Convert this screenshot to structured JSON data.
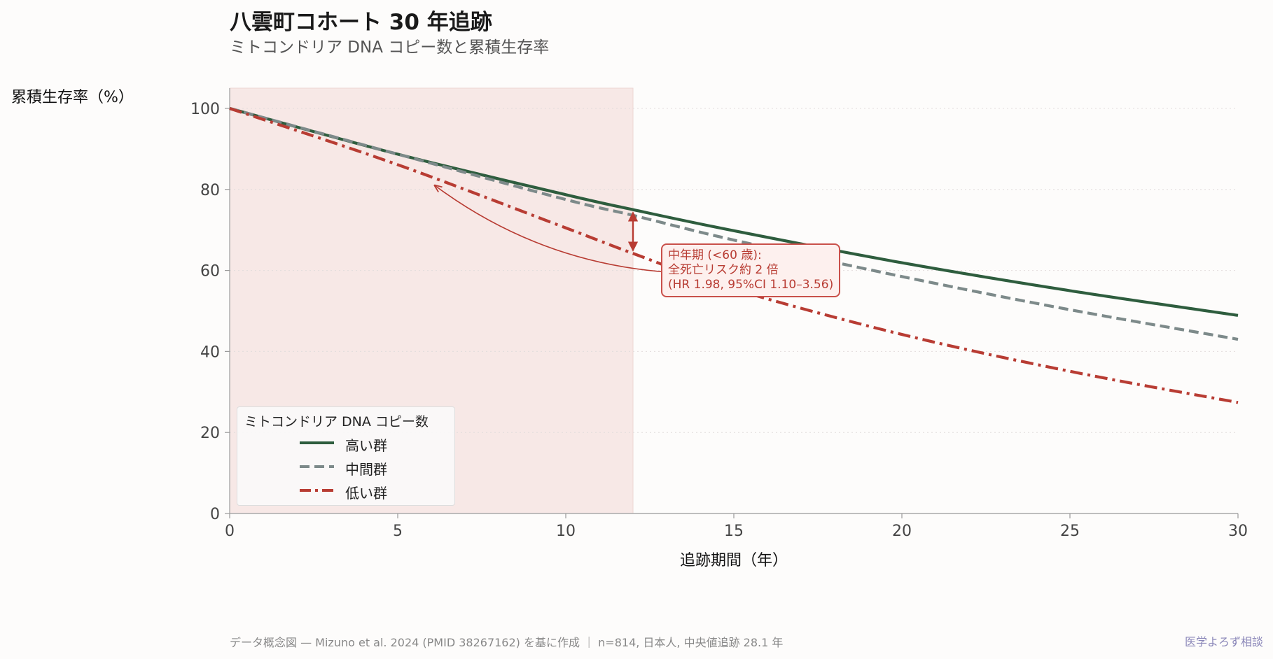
{
  "header": {
    "title": "八雲町コホート 30 年追跡",
    "subtitle": "ミトコンドリア DNA コピー数と累積生存率"
  },
  "footer": {
    "note": "データ概念図 — Mizuno et al. 2024 (PMID 38267162) を基に作成 ｜ n=814, 日本人, 中央値追跡 28.1 年",
    "brand": "医学よろず相談"
  },
  "annotation": {
    "line1": "中年期 (<60 歳):",
    "line2": "全死亡リスク約 2 倍",
    "line3": "(HR 1.98, 95%CI 1.10–3.56)"
  },
  "chart_data": {
    "type": "line",
    "xlabel": "追跡期間（年）",
    "ylabel": "累積生存率（%）",
    "xlim": [
      0,
      30
    ],
    "ylim": [
      0,
      105
    ],
    "xticks": [
      0,
      5,
      10,
      15,
      20,
      25,
      30
    ],
    "yticks": [
      0,
      20,
      40,
      60,
      80,
      100
    ],
    "grid": "horizontal-dotted",
    "shaded_region": {
      "x_from": 0,
      "x_to": 12,
      "color": "#f7e8e6"
    },
    "legend": {
      "title": "ミトコンドリア DNA コピー数",
      "placement": "lower-left"
    },
    "series": [
      {
        "name": "高い群",
        "color": "#2e5d3e",
        "style": "solid",
        "x": [
          0,
          5,
          10,
          12,
          15,
          20,
          25,
          30
        ],
        "y": [
          100,
          88.7,
          78.7,
          75,
          69.8,
          61.9,
          55,
          48.9
        ]
      },
      {
        "name": "中間群",
        "color": "#7d8a8a",
        "style": "dashed",
        "x": [
          0,
          5,
          10,
          12,
          15,
          20,
          25,
          30
        ],
        "y": [
          100,
          88.7,
          77.5,
          73.6,
          67.5,
          58.5,
          50.3,
          43
        ]
      },
      {
        "name": "低い群",
        "color": "#b83c33",
        "style": "dashdot",
        "x": [
          0,
          5,
          10,
          12,
          15,
          20,
          25,
          30
        ],
        "y": [
          100,
          86.1,
          70.5,
          64.2,
          55.4,
          44.2,
          35.1,
          27.4
        ]
      }
    ],
    "annotation_arrow": {
      "x": 12,
      "y_from": 64.2,
      "y_to": 75
    },
    "annotation_pointer": {
      "x": 6.1,
      "y": 81
    }
  }
}
